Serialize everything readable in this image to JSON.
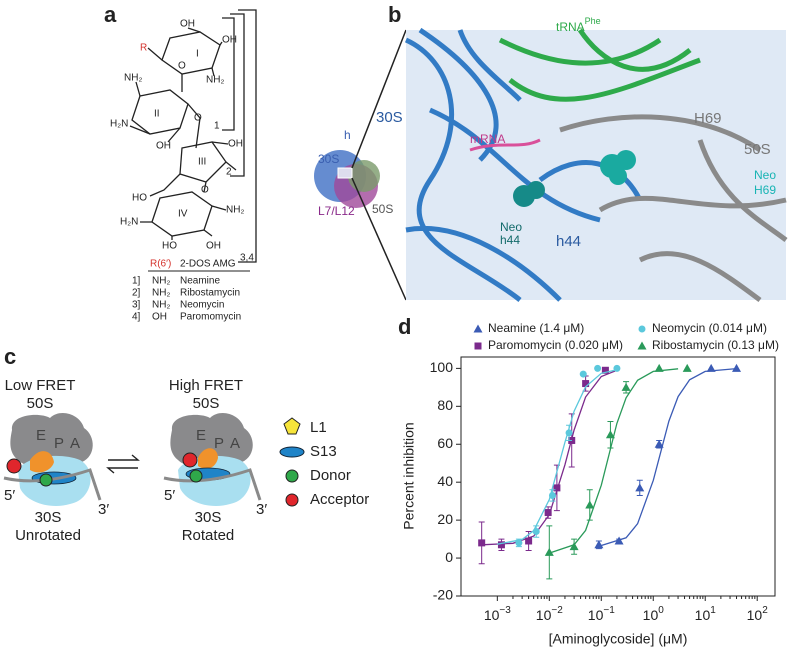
{
  "panel_a": {
    "letter": "a",
    "atoms": [
      "R",
      "OH",
      "OH",
      "I",
      "NH₂",
      "NH₂",
      "O",
      "II",
      "H₂N",
      "OH",
      "O",
      "III",
      "OH",
      "O",
      "HO",
      "IV",
      "NH₂",
      "H₂N",
      "HO",
      "OH",
      "1",
      "2",
      "3,4"
    ],
    "table": {
      "header": [
        "R(6′)",
        "2-DOS AMG"
      ],
      "rows": [
        [
          "1]",
          "NH₂",
          "Neamine"
        ],
        [
          "2]",
          "NH₂",
          "Ribostamycin"
        ],
        [
          "3]",
          "NH₂",
          "Neomycin"
        ],
        [
          "4]",
          "OH",
          "Paromomycin"
        ]
      ]
    }
  },
  "panel_b": {
    "letter": "b",
    "labels": {
      "trna": "tRNA",
      "trna_sup": "Phe",
      "s30": "30S",
      "mrna": "mRNA",
      "h69": "H69",
      "s50": "50S",
      "neo_h69": "Neo",
      "neo_h69_b": "H69",
      "neo_h44": "Neo",
      "neo_h44_b": "h44",
      "h44": "h44",
      "small_h": "h",
      "small_30s": "30S",
      "small_l7": "L7/L12",
      "small_50s": "50S"
    }
  },
  "panel_c": {
    "letter": "c",
    "left": {
      "title": "Low FRET",
      "top": "50S",
      "sites": [
        "E",
        "P",
        "A"
      ],
      "five": "5′",
      "three": "3′",
      "bottom": "30S",
      "state": "Unrotated"
    },
    "right": {
      "title": "High FRET",
      "top": "50S",
      "sites": [
        "E",
        "P",
        "A"
      ],
      "five": "5′",
      "three": "3′",
      "bottom": "30S",
      "state": "Rotated"
    },
    "legend": [
      "L1",
      "S13",
      "Donor",
      "Acceptor"
    ]
  },
  "chart_data": {
    "type": "scatter",
    "letter": "d",
    "ylabel": "Percent inhibition",
    "xlabel": "[Aminoglycoside] (μM)",
    "xscale": "log",
    "xlim": [
      0.0002,
      220
    ],
    "ylim": [
      -20,
      106
    ],
    "xticks": [
      {
        "value": 0.001,
        "label": "10",
        "exponent": "−3"
      },
      {
        "value": 0.01,
        "label": "10",
        "exponent": "−2"
      },
      {
        "value": 0.1,
        "label": "10",
        "exponent": "−1"
      },
      {
        "value": 1,
        "label": "10",
        "exponent": "0"
      },
      {
        "value": 10,
        "label": "10",
        "exponent": "1"
      },
      {
        "value": 100,
        "label": "10",
        "exponent": "2"
      }
    ],
    "yticks": [
      -20,
      0,
      20,
      40,
      60,
      80,
      100
    ],
    "series": [
      {
        "name": "Neamine (1.4 μM)",
        "color": "#3b5bb5",
        "marker": "triangle",
        "x": [
          0.09,
          0.22,
          0.55,
          1.3,
          13,
          40
        ],
        "values": [
          7,
          9,
          37,
          60,
          100,
          100
        ],
        "errors": [
          2,
          1,
          4,
          2,
          0,
          0
        ],
        "fit_x": [
          0.1,
          0.3,
          0.5,
          1,
          2,
          3,
          5,
          10,
          40
        ],
        "fit_values": [
          6.6,
          10.7,
          18.1,
          41,
          72.2,
          85.1,
          94,
          98.4,
          99.9
        ]
      },
      {
        "name": "Paromomycin (0.020 μM)",
        "color": "#7b2a8c",
        "marker": "square",
        "x": [
          0.0005,
          0.0012,
          0.004,
          0.0095,
          0.014,
          0.027,
          0.05,
          0.12
        ],
        "values": [
          8,
          7,
          9,
          24,
          37,
          62,
          92,
          99
        ],
        "errors": [
          11,
          3,
          5,
          3,
          12,
          14,
          4,
          0
        ],
        "fit_x": [
          0.0005,
          0.002,
          0.005,
          0.01,
          0.02,
          0.03,
          0.05,
          0.1,
          0.2
        ],
        "fit_values": [
          7,
          7.8,
          11.6,
          22.9,
          49.1,
          67.5,
          84.9,
          95.7,
          99
        ]
      },
      {
        "name": "Neomycin (0.014 μM)",
        "color": "#5bc8dc",
        "marker": "circle",
        "x": [
          0.0026,
          0.0056,
          0.0115,
          0.024,
          0.045,
          0.085,
          0.2
        ],
        "values": [
          8,
          14,
          33,
          66,
          97,
          100,
          100
        ],
        "errors": [
          2,
          3,
          3,
          4,
          0,
          0,
          0
        ],
        "fit_x": [
          0.001,
          0.003,
          0.005,
          0.01,
          0.02,
          0.03,
          0.05,
          0.1,
          0.2
        ],
        "fit_values": [
          7.3,
          9.8,
          14.4,
          30.9,
          61,
          77.4,
          90.3,
          97.4,
          99.3
        ]
      },
      {
        "name": "Ribostamycin (0.13 μM)",
        "color": "#2a9a5a",
        "marker": "triangle",
        "x": [
          0.01,
          0.03,
          0.06,
          0.15,
          0.3,
          1.3,
          4.5
        ],
        "values": [
          3,
          6,
          28,
          65,
          90,
          100,
          100
        ],
        "errors": [
          14,
          4,
          8,
          7,
          3,
          0,
          0
        ],
        "fit_x": [
          0.01,
          0.03,
          0.05,
          0.1,
          0.2,
          0.3,
          0.5,
          1,
          3
        ],
        "fit_values": [
          2.6,
          7,
          14.6,
          38.4,
          71,
          84.5,
          93.7,
          98.4,
          99.8
        ]
      }
    ]
  }
}
